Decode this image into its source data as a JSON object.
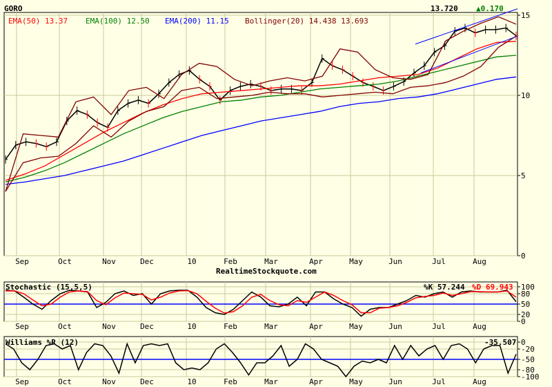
{
  "header": {
    "symbol": "GORO",
    "last": "13.720",
    "change": "▲0.170",
    "legend": [
      {
        "label": "EMA(50) 13.37",
        "color": "#ff0000"
      },
      {
        "label": "EMA(100) 12.50",
        "color": "#008000"
      },
      {
        "label": "EMA(200) 11.15",
        "color": "#0000ff"
      },
      {
        "label": "Bollinger(20) 14.438 13.693",
        "color": "#800000"
      }
    ],
    "source": "RealtimeStockquote.com"
  },
  "months": [
    "Sep",
    "Oct",
    "Nov",
    "Dec",
    "10",
    "Feb",
    "Mar",
    "Apr",
    "May",
    "Jun",
    "Jul",
    "Aug"
  ],
  "chart_data": [
    {
      "type": "line",
      "title": "GORO",
      "ylim": [
        0,
        15
      ],
      "yticks": [
        "15",
        "10",
        "5",
        "0"
      ],
      "series": [
        {
          "name": "Price",
          "color": "#000000",
          "values": [
            6.0,
            6.9,
            7.1,
            7.0,
            6.8,
            7.1,
            8.4,
            9.05,
            8.8,
            8.3,
            8.0,
            9.05,
            9.5,
            9.7,
            9.5,
            10.1,
            10.8,
            11.3,
            11.55,
            11.0,
            10.56,
            9.7,
            10.3,
            10.56,
            10.7,
            10.56,
            10.3,
            10.4,
            10.4,
            10.3,
            10.8,
            12.3,
            11.85,
            11.6,
            11.2,
            10.8,
            10.56,
            10.3,
            10.56,
            10.86,
            11.4,
            11.85,
            12.7,
            13.1,
            14.0,
            14.2,
            13.9,
            14.1,
            14.1,
            14.2,
            13.72
          ]
        },
        {
          "name": "EMA(50)",
          "color": "#ff0000",
          "values": [
            4.7,
            5.1,
            5.6,
            6.3,
            7.0,
            7.7,
            8.3,
            8.9,
            9.4,
            9.8,
            10.1,
            10.2,
            10.3,
            10.4,
            10.5,
            10.6,
            10.6,
            10.7,
            10.9,
            11.1,
            11.2,
            11.3,
            11.7,
            12.3,
            12.9,
            13.3,
            13.37
          ]
        },
        {
          "name": "EMA(100)",
          "color": "#008000",
          "values": [
            4.6,
            4.9,
            5.3,
            5.8,
            6.4,
            7.0,
            7.6,
            8.1,
            8.6,
            9.0,
            9.3,
            9.6,
            9.7,
            9.9,
            10.0,
            10.2,
            10.4,
            10.5,
            10.6,
            10.7,
            10.9,
            11.2,
            11.5,
            11.8,
            12.1,
            12.4,
            12.5
          ]
        },
        {
          "name": "EMA(200)",
          "color": "#0000ff",
          "values": [
            4.45,
            4.6,
            4.8,
            5.0,
            5.3,
            5.6,
            5.9,
            6.3,
            6.7,
            7.1,
            7.5,
            7.8,
            8.1,
            8.4,
            8.6,
            8.8,
            9.0,
            9.3,
            9.5,
            9.6,
            9.8,
            9.9,
            10.1,
            10.4,
            10.7,
            11.0,
            11.15
          ]
        },
        {
          "name": "Bollinger Upper",
          "color": "#800000",
          "values": [
            4.0,
            7.6,
            7.5,
            7.4,
            9.6,
            9.9,
            8.8,
            10.3,
            10.5,
            9.8,
            11.3,
            12.0,
            11.8,
            11.0,
            10.6,
            10.9,
            11.1,
            10.9,
            11.2,
            12.9,
            12.7,
            11.6,
            11.1,
            11.0,
            11.3,
            13.4,
            14.0,
            14.5,
            14.9,
            14.438
          ]
        },
        {
          "name": "Bollinger Lower",
          "color": "#800000",
          "values": [
            4.0,
            5.8,
            6.1,
            6.2,
            7.0,
            8.1,
            7.4,
            8.4,
            9.0,
            9.3,
            10.3,
            10.5,
            9.8,
            9.9,
            10.0,
            10.2,
            10.1,
            10.1,
            9.9,
            10.0,
            10.1,
            10.2,
            10.1,
            10.5,
            10.6,
            10.8,
            11.2,
            11.8,
            13.0,
            13.693
          ]
        }
      ]
    },
    {
      "type": "line",
      "title": "Stochastic (15,5,5)",
      "ylim": [
        0,
        100
      ],
      "yticks": [
        "100",
        "80",
        "50",
        "20",
        "0"
      ],
      "reference_line": 50,
      "labels": {
        "k": "%K 57.244",
        "d": "%D 69.943"
      },
      "series": [
        {
          "name": "%K",
          "color": "#000000",
          "values": [
            90,
            88,
            70,
            50,
            35,
            60,
            80,
            90,
            88,
            85,
            40,
            55,
            80,
            88,
            75,
            80,
            50,
            80,
            88,
            90,
            90,
            70,
            40,
            25,
            20,
            35,
            60,
            85,
            70,
            45,
            42,
            50,
            70,
            45,
            85,
            85,
            65,
            50,
            40,
            15,
            35,
            40,
            40,
            50,
            60,
            75,
            70,
            80,
            85,
            70,
            85,
            88,
            85,
            85,
            85,
            90,
            57
          ]
        },
        {
          "name": "%D",
          "color": "#ff0000",
          "values": [
            88,
            88,
            80,
            62,
            45,
            50,
            70,
            85,
            88,
            86,
            60,
            48,
            68,
            82,
            80,
            78,
            62,
            70,
            82,
            88,
            89,
            80,
            58,
            38,
            24,
            28,
            45,
            70,
            78,
            60,
            48,
            45,
            60,
            55,
            70,
            85,
            75,
            60,
            48,
            25,
            25,
            38,
            40,
            45,
            55,
            68,
            72,
            75,
            82,
            75,
            80,
            86,
            86,
            85,
            85,
            88,
            70
          ]
        }
      ]
    },
    {
      "type": "line",
      "title": "Williams %R (12)",
      "ylim": [
        -100,
        0
      ],
      "yticks": [
        "0",
        "-20",
        "-50",
        "-80",
        "-100"
      ],
      "reference_line": -50,
      "labels": {
        "value": "-35.507"
      },
      "series": [
        {
          "name": "%R",
          "color": "#000000",
          "values": [
            -5,
            -20,
            -60,
            -80,
            -50,
            -10,
            -5,
            -20,
            -10,
            -80,
            -30,
            -5,
            -10,
            -40,
            -90,
            -5,
            -60,
            -10,
            -5,
            -10,
            -5,
            -60,
            -80,
            -75,
            -80,
            -60,
            -20,
            -5,
            -30,
            -60,
            -95,
            -60,
            -60,
            -40,
            -10,
            -70,
            -50,
            -5,
            -20,
            -50,
            -60,
            -70,
            -100,
            -70,
            -55,
            -60,
            -50,
            -60,
            -10,
            -50,
            -10,
            -40,
            -20,
            -10,
            -50,
            -10,
            -5,
            -20,
            -60,
            -20,
            -10,
            -10,
            -90,
            -35
          ]
        }
      ]
    }
  ]
}
